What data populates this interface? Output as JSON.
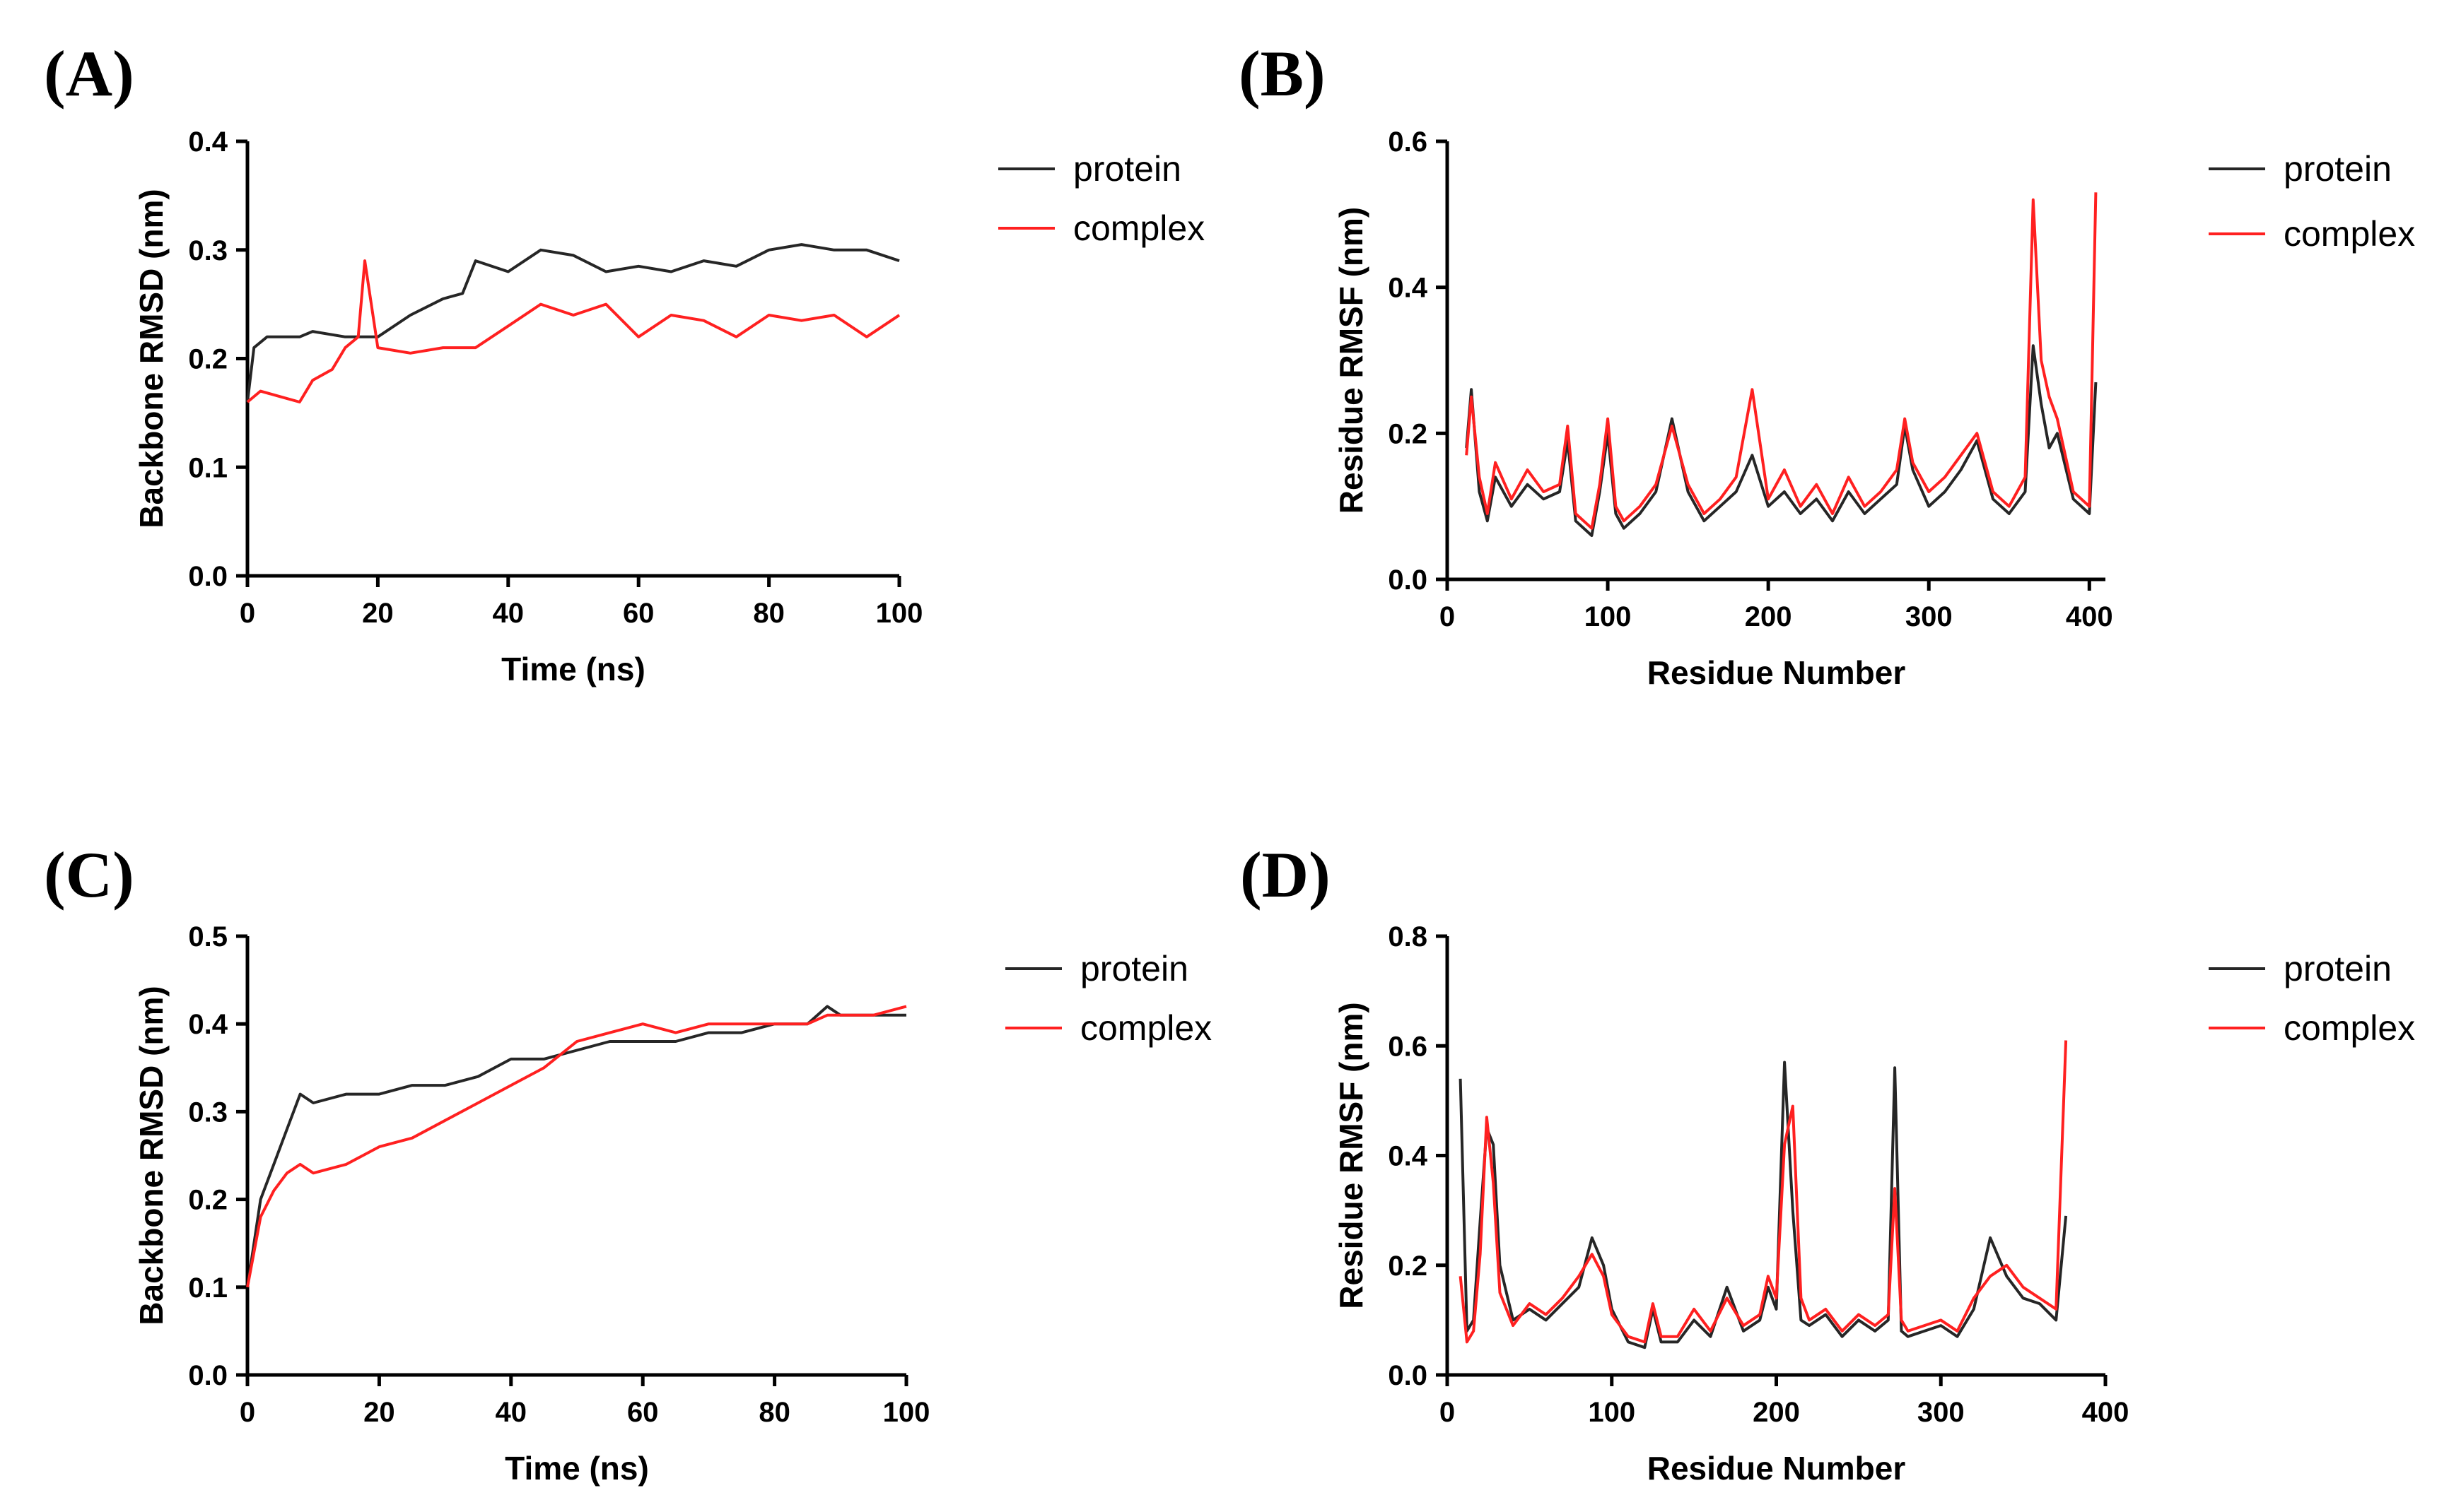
{
  "chart_data": [
    {
      "panel_label": "(A)",
      "type": "line",
      "xlabel": "Time (ns)",
      "ylabel": "Backbone RMSD (nm)",
      "xlim": [
        0,
        100
      ],
      "ylim": [
        0,
        0.4
      ],
      "xticks": [
        "0",
        "20",
        "40",
        "60",
        "80",
        "100"
      ],
      "yticks": [
        "0.0",
        "0.1",
        "0.2",
        "0.3",
        "0.4"
      ],
      "legend_position": "right",
      "series": [
        {
          "name": "protein",
          "color": "#262626",
          "x": [
            0,
            1,
            3,
            5,
            8,
            10,
            15,
            18,
            20,
            25,
            30,
            33,
            35,
            40,
            45,
            50,
            55,
            60,
            65,
            70,
            75,
            80,
            85,
            90,
            95,
            100
          ],
          "y": [
            0.16,
            0.21,
            0.22,
            0.22,
            0.22,
            0.225,
            0.22,
            0.22,
            0.22,
            0.24,
            0.255,
            0.26,
            0.29,
            0.28,
            0.3,
            0.295,
            0.28,
            0.285,
            0.28,
            0.29,
            0.285,
            0.3,
            0.305,
            0.3,
            0.3,
            0.29
          ]
        },
        {
          "name": "complex",
          "color": "#ff2020",
          "x": [
            0,
            2,
            5,
            8,
            10,
            13,
            15,
            17,
            18,
            20,
            25,
            30,
            35,
            40,
            45,
            50,
            55,
            60,
            65,
            70,
            75,
            80,
            85,
            90,
            95,
            100
          ],
          "y": [
            0.16,
            0.17,
            0.165,
            0.16,
            0.18,
            0.19,
            0.21,
            0.22,
            0.29,
            0.21,
            0.205,
            0.21,
            0.21,
            0.23,
            0.25,
            0.24,
            0.25,
            0.22,
            0.24,
            0.235,
            0.22,
            0.24,
            0.235,
            0.24,
            0.22,
            0.24
          ]
        }
      ]
    },
    {
      "panel_label": "(B)",
      "type": "line",
      "xlabel": "Residue Number",
      "ylabel": "Residue RMSF (nm)",
      "xlim": [
        0,
        410
      ],
      "ylim": [
        0,
        0.6
      ],
      "xticks": [
        "0",
        "100",
        "200",
        "300",
        "400"
      ],
      "yticks": [
        "0.0",
        "0.2",
        "0.4",
        "0.6"
      ],
      "legend_position": "right",
      "series": [
        {
          "name": "protein",
          "color": "#262626",
          "x": [
            12,
            15,
            20,
            25,
            30,
            40,
            50,
            60,
            70,
            75,
            80,
            90,
            95,
            100,
            105,
            110,
            120,
            130,
            140,
            150,
            160,
            170,
            180,
            190,
            200,
            210,
            220,
            230,
            240,
            250,
            260,
            270,
            280,
            285,
            290,
            300,
            310,
            320,
            330,
            340,
            350,
            360,
            365,
            370,
            375,
            380,
            390,
            400,
            404
          ],
          "y": [
            0.18,
            0.26,
            0.12,
            0.08,
            0.14,
            0.1,
            0.13,
            0.11,
            0.12,
            0.19,
            0.08,
            0.06,
            0.12,
            0.2,
            0.09,
            0.07,
            0.09,
            0.12,
            0.22,
            0.12,
            0.08,
            0.1,
            0.12,
            0.17,
            0.1,
            0.12,
            0.09,
            0.11,
            0.08,
            0.12,
            0.09,
            0.11,
            0.13,
            0.21,
            0.15,
            0.1,
            0.12,
            0.15,
            0.19,
            0.11,
            0.09,
            0.12,
            0.32,
            0.24,
            0.18,
            0.2,
            0.11,
            0.09,
            0.27
          ]
        },
        {
          "name": "complex",
          "color": "#ff2020",
          "x": [
            12,
            15,
            20,
            25,
            30,
            40,
            50,
            60,
            70,
            75,
            80,
            90,
            95,
            100,
            105,
            110,
            120,
            130,
            140,
            150,
            160,
            170,
            180,
            190,
            200,
            210,
            220,
            230,
            240,
            250,
            260,
            270,
            280,
            285,
            290,
            300,
            310,
            320,
            330,
            340,
            350,
            360,
            365,
            370,
            375,
            380,
            390,
            400,
            404
          ],
          "y": [
            0.17,
            0.25,
            0.14,
            0.09,
            0.16,
            0.11,
            0.15,
            0.12,
            0.13,
            0.21,
            0.09,
            0.07,
            0.13,
            0.22,
            0.1,
            0.08,
            0.1,
            0.13,
            0.21,
            0.13,
            0.09,
            0.11,
            0.14,
            0.26,
            0.11,
            0.15,
            0.1,
            0.13,
            0.09,
            0.14,
            0.1,
            0.12,
            0.15,
            0.22,
            0.16,
            0.12,
            0.14,
            0.17,
            0.2,
            0.12,
            0.1,
            0.14,
            0.52,
            0.3,
            0.25,
            0.22,
            0.12,
            0.1,
            0.53
          ]
        }
      ]
    },
    {
      "panel_label": "(C)",
      "type": "line",
      "xlabel": "Time (ns)",
      "ylabel": "Backbone RMSD (nm)",
      "xlim": [
        0,
        100
      ],
      "ylim": [
        0,
        0.5
      ],
      "xticks": [
        "0",
        "20",
        "40",
        "60",
        "80",
        "100"
      ],
      "yticks": [
        "0.0",
        "0.1",
        "0.2",
        "0.3",
        "0.4",
        "0.5"
      ],
      "legend_position": "right",
      "series": [
        {
          "name": "protein",
          "color": "#262626",
          "x": [
            0,
            1,
            2,
            4,
            6,
            8,
            10,
            15,
            20,
            25,
            30,
            35,
            40,
            45,
            50,
            55,
            60,
            65,
            70,
            75,
            80,
            85,
            88,
            90,
            95,
            100
          ],
          "y": [
            0.1,
            0.15,
            0.2,
            0.24,
            0.28,
            0.32,
            0.31,
            0.32,
            0.32,
            0.33,
            0.33,
            0.34,
            0.36,
            0.36,
            0.37,
            0.38,
            0.38,
            0.38,
            0.39,
            0.39,
            0.4,
            0.4,
            0.42,
            0.41,
            0.41,
            0.41
          ]
        },
        {
          "name": "complex",
          "color": "#ff2020",
          "x": [
            0,
            1,
            2,
            4,
            6,
            8,
            10,
            15,
            20,
            25,
            30,
            35,
            40,
            45,
            50,
            55,
            60,
            65,
            70,
            75,
            80,
            85,
            88,
            90,
            95,
            100
          ],
          "y": [
            0.1,
            0.14,
            0.18,
            0.21,
            0.23,
            0.24,
            0.23,
            0.24,
            0.26,
            0.27,
            0.29,
            0.31,
            0.33,
            0.35,
            0.38,
            0.39,
            0.4,
            0.39,
            0.4,
            0.4,
            0.4,
            0.4,
            0.41,
            0.41,
            0.41,
            0.42
          ]
        }
      ]
    },
    {
      "panel_label": "(D)",
      "type": "line",
      "xlabel": "Residue Number",
      "ylabel": "Residue RMSF (nm)",
      "xlim": [
        0,
        400
      ],
      "ylim": [
        0,
        0.8
      ],
      "xticks": [
        "0",
        "100",
        "200",
        "300",
        "400"
      ],
      "yticks": [
        "0.0",
        "0.2",
        "0.4",
        "0.6",
        "0.8"
      ],
      "legend_position": "right",
      "series": [
        {
          "name": "protein",
          "color": "#262626",
          "x": [
            8,
            12,
            16,
            20,
            24,
            28,
            32,
            40,
            50,
            60,
            70,
            80,
            88,
            95,
            100,
            110,
            120,
            125,
            130,
            140,
            150,
            160,
            170,
            180,
            190,
            195,
            200,
            205,
            210,
            215,
            220,
            230,
            240,
            250,
            260,
            268,
            272,
            276,
            280,
            290,
            300,
            310,
            320,
            330,
            340,
            350,
            360,
            370,
            376
          ],
          "y": [
            0.54,
            0.08,
            0.1,
            0.28,
            0.45,
            0.42,
            0.2,
            0.1,
            0.12,
            0.1,
            0.13,
            0.16,
            0.25,
            0.2,
            0.12,
            0.06,
            0.05,
            0.12,
            0.06,
            0.06,
            0.1,
            0.07,
            0.16,
            0.08,
            0.1,
            0.16,
            0.12,
            0.57,
            0.3,
            0.1,
            0.09,
            0.11,
            0.07,
            0.1,
            0.08,
            0.1,
            0.56,
            0.08,
            0.07,
            0.08,
            0.09,
            0.07,
            0.12,
            0.25,
            0.18,
            0.14,
            0.13,
            0.1,
            0.29
          ]
        },
        {
          "name": "complex",
          "color": "#ff2020",
          "x": [
            8,
            12,
            16,
            20,
            24,
            28,
            32,
            40,
            50,
            60,
            70,
            80,
            88,
            95,
            100,
            110,
            120,
            125,
            130,
            140,
            150,
            160,
            170,
            180,
            190,
            195,
            200,
            205,
            210,
            215,
            220,
            230,
            240,
            250,
            260,
            268,
            272,
            276,
            280,
            290,
            300,
            310,
            320,
            330,
            340,
            350,
            360,
            370,
            376
          ],
          "y": [
            0.18,
            0.06,
            0.08,
            0.22,
            0.47,
            0.35,
            0.15,
            0.09,
            0.13,
            0.11,
            0.14,
            0.18,
            0.22,
            0.18,
            0.11,
            0.07,
            0.06,
            0.13,
            0.07,
            0.07,
            0.12,
            0.08,
            0.14,
            0.09,
            0.11,
            0.18,
            0.14,
            0.42,
            0.49,
            0.14,
            0.1,
            0.12,
            0.08,
            0.11,
            0.09,
            0.11,
            0.34,
            0.1,
            0.08,
            0.09,
            0.1,
            0.08,
            0.14,
            0.18,
            0.2,
            0.16,
            0.14,
            0.12,
            0.61
          ]
        }
      ]
    }
  ]
}
